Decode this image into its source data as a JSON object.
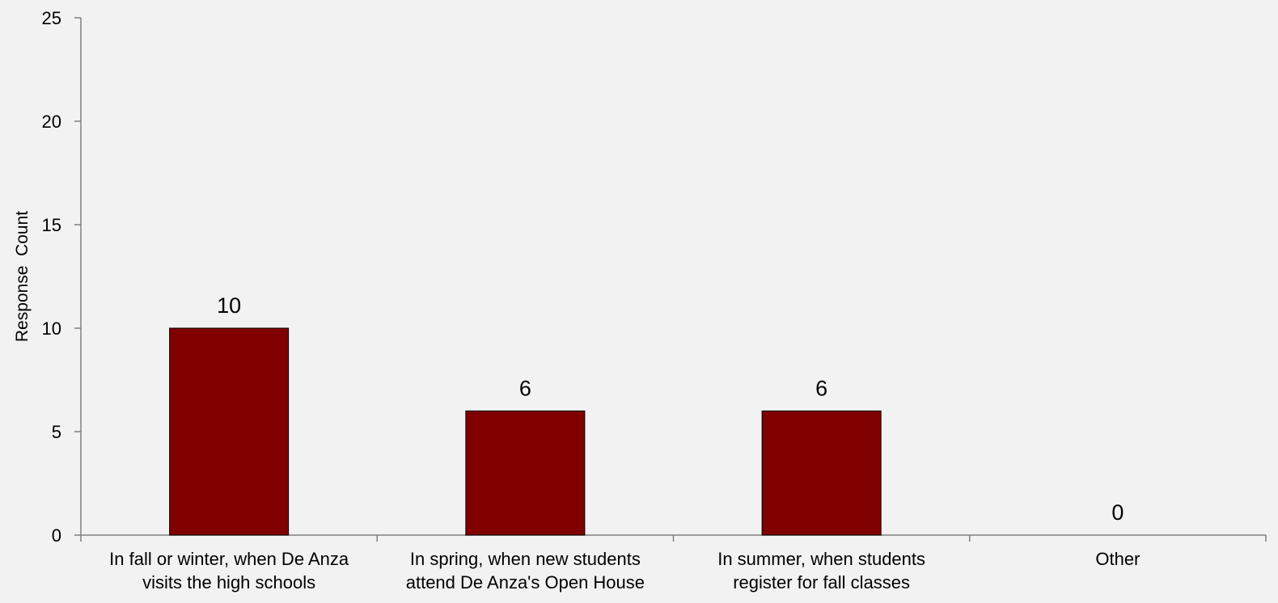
{
  "chart_data": {
    "type": "bar",
    "title": "",
    "xlabel": "",
    "ylabel": "Response  Count",
    "ylim": [
      0,
      25
    ],
    "yticks": [
      0,
      5,
      10,
      15,
      20,
      25
    ],
    "grid": false,
    "legend": "none",
    "categories": [
      [
        "In fall or winter, when De Anza",
        "visits the high schools"
      ],
      [
        "In spring, when new students",
        "attend De Anza's Open House"
      ],
      [
        "In summer, when students",
        "register for fall classes"
      ],
      [
        "Other"
      ]
    ],
    "values": [
      10,
      6,
      6,
      0
    ],
    "data_labels": [
      "10",
      "6",
      "6",
      "0"
    ],
    "colors": {
      "bar": "#800000",
      "background": "#f2f2f2",
      "axis": "#808080",
      "text": "#000000"
    }
  }
}
